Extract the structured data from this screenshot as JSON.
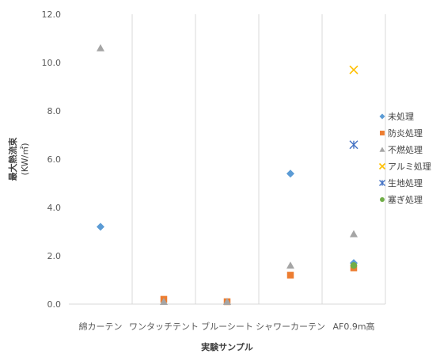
{
  "chart_data": {
    "type": "scatter",
    "categories": [
      "綿カーテン",
      "ワンタッチテント",
      "ブルーシート",
      "シャワーカーテン",
      "AF0.9m高"
    ],
    "xlabel": "実験サンプル",
    "ylabel": "最大熱流束",
    "ylabel_unit": "(KW/㎡)",
    "ylim": [
      0,
      12
    ],
    "yticks": [
      "0.0",
      "2.0",
      "4.0",
      "6.0",
      "8.0",
      "10.0",
      "12.0"
    ],
    "grid": "vertical",
    "legend_position": "right",
    "series": [
      {
        "name": "未処理",
        "marker": "diamond",
        "color": "#5b9bd5",
        "values": [
          3.2,
          null,
          null,
          5.4,
          1.7
        ]
      },
      {
        "name": "防炎処理",
        "marker": "square",
        "color": "#ed7d31",
        "values": [
          null,
          0.2,
          0.1,
          1.2,
          1.5
        ]
      },
      {
        "name": "不燃処理",
        "marker": "triangle",
        "color": "#a5a5a5",
        "values": [
          10.6,
          0.1,
          0.1,
          1.6,
          2.9
        ]
      },
      {
        "name": "アルミ処理",
        "marker": "x",
        "color": "#ffc000",
        "values": [
          null,
          null,
          null,
          null,
          9.7
        ]
      },
      {
        "name": "生地処理",
        "marker": "star",
        "color": "#4472c4",
        "values": [
          null,
          null,
          null,
          null,
          6.6
        ]
      },
      {
        "name": "塞ぎ処理",
        "marker": "circle",
        "color": "#70ad47",
        "values": [
          null,
          null,
          null,
          null,
          1.6
        ]
      }
    ]
  }
}
